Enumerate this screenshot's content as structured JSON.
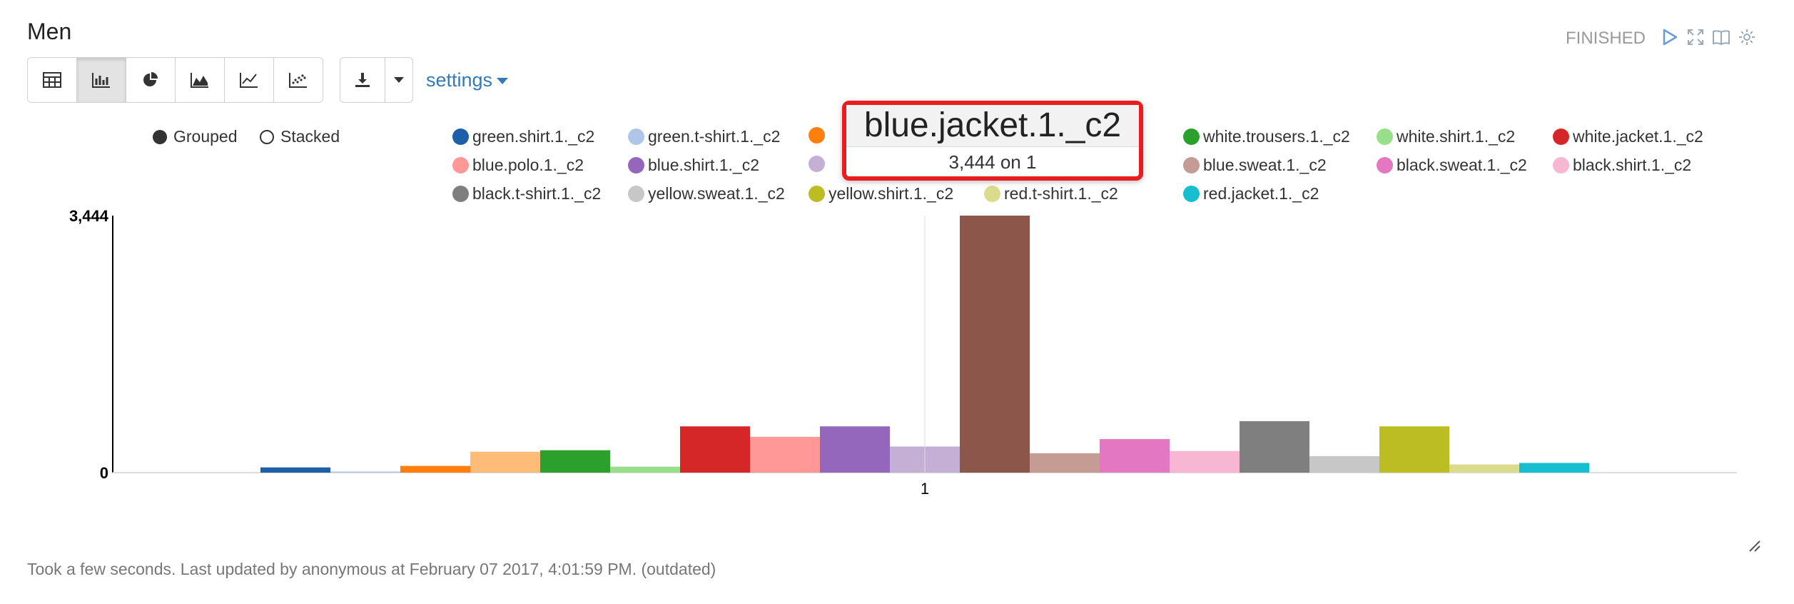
{
  "header": {
    "title": "Men",
    "status": "FINISHED",
    "icons": [
      "run-icon",
      "fullscreen-icon",
      "book-icon",
      "gear-icon"
    ]
  },
  "toolbar": {
    "buttons": [
      {
        "name": "table-view-button",
        "icon": "table-icon",
        "active": false
      },
      {
        "name": "bar-chart-button",
        "icon": "bar-chart-icon",
        "active": true
      },
      {
        "name": "pie-chart-button",
        "icon": "pie-chart-icon",
        "active": false
      },
      {
        "name": "area-chart-button",
        "icon": "area-chart-icon",
        "active": false
      },
      {
        "name": "line-chart-button",
        "icon": "line-chart-icon",
        "active": false
      },
      {
        "name": "scatter-chart-button",
        "icon": "scatter-chart-icon",
        "active": false
      }
    ],
    "download_icon": "download-icon",
    "settings_label": "settings"
  },
  "modes": {
    "grouped": "Grouped",
    "stacked": "Stacked",
    "selected": "grouped"
  },
  "tooltip": {
    "title": "blue.jacket.1._c2",
    "value_text": "3,444 on 1"
  },
  "footer": {
    "text": "Took a few seconds. Last updated by anonymous at February 07 2017, 4:01:59 PM. (outdated)"
  },
  "chart_data": {
    "type": "bar",
    "mode": "grouped",
    "categories": [
      "1"
    ],
    "ylim": [
      0,
      3444
    ],
    "y_ticks": [
      "0",
      "3,444"
    ],
    "series": [
      {
        "name": "green.shirt.1._c2",
        "color": "#1f5fa8",
        "values": [
          70
        ]
      },
      {
        "name": "green.t-shirt.1._c2",
        "color": "#aec7e8",
        "values": [
          15
        ]
      },
      {
        "name": "",
        "color": "#ff7f0e",
        "values": [
          90
        ]
      },
      {
        "name": "",
        "color": "#ffbb78",
        "values": [
          280
        ]
      },
      {
        "name": "white.trousers.1._c2",
        "color": "#2ca02c",
        "values": [
          300
        ]
      },
      {
        "name": "white.shirt.1._c2",
        "color": "#98df8a",
        "values": [
          80
        ]
      },
      {
        "name": "white.jacket.1._c2",
        "color": "#d62728",
        "values": [
          620
        ]
      },
      {
        "name": "blue.polo.1._c2",
        "color": "#ff9896",
        "values": [
          480
        ]
      },
      {
        "name": "blue.shirt.1._c2",
        "color": "#9467bd",
        "values": [
          620
        ]
      },
      {
        "name": "",
        "color": "#c5b0d5",
        "values": [
          350
        ]
      },
      {
        "name": "blue.jacket.1._c2",
        "color": "#8c564b",
        "values": [
          3444
        ]
      },
      {
        "name": "blue.sweat.1._c2",
        "color": "#c49c94",
        "values": [
          260
        ]
      },
      {
        "name": "black.sweat.1._c2",
        "color": "#e377c2",
        "values": [
          450
        ]
      },
      {
        "name": "black.shirt.1._c2",
        "color": "#f7b6d2",
        "values": [
          290
        ]
      },
      {
        "name": "black.t-shirt.1._c2",
        "color": "#7f7f7f",
        "values": [
          690
        ]
      },
      {
        "name": "yellow.sweat.1._c2",
        "color": "#c7c7c7",
        "values": [
          220
        ]
      },
      {
        "name": "yellow.shirt.1._c2",
        "color": "#bcbd22",
        "values": [
          620
        ]
      },
      {
        "name": "red.t-shirt.1._c2",
        "color": "#dbdb8d",
        "values": [
          110
        ]
      },
      {
        "name": "red.jacket.1._c2",
        "color": "#17becf",
        "values": [
          130
        ]
      }
    ]
  }
}
